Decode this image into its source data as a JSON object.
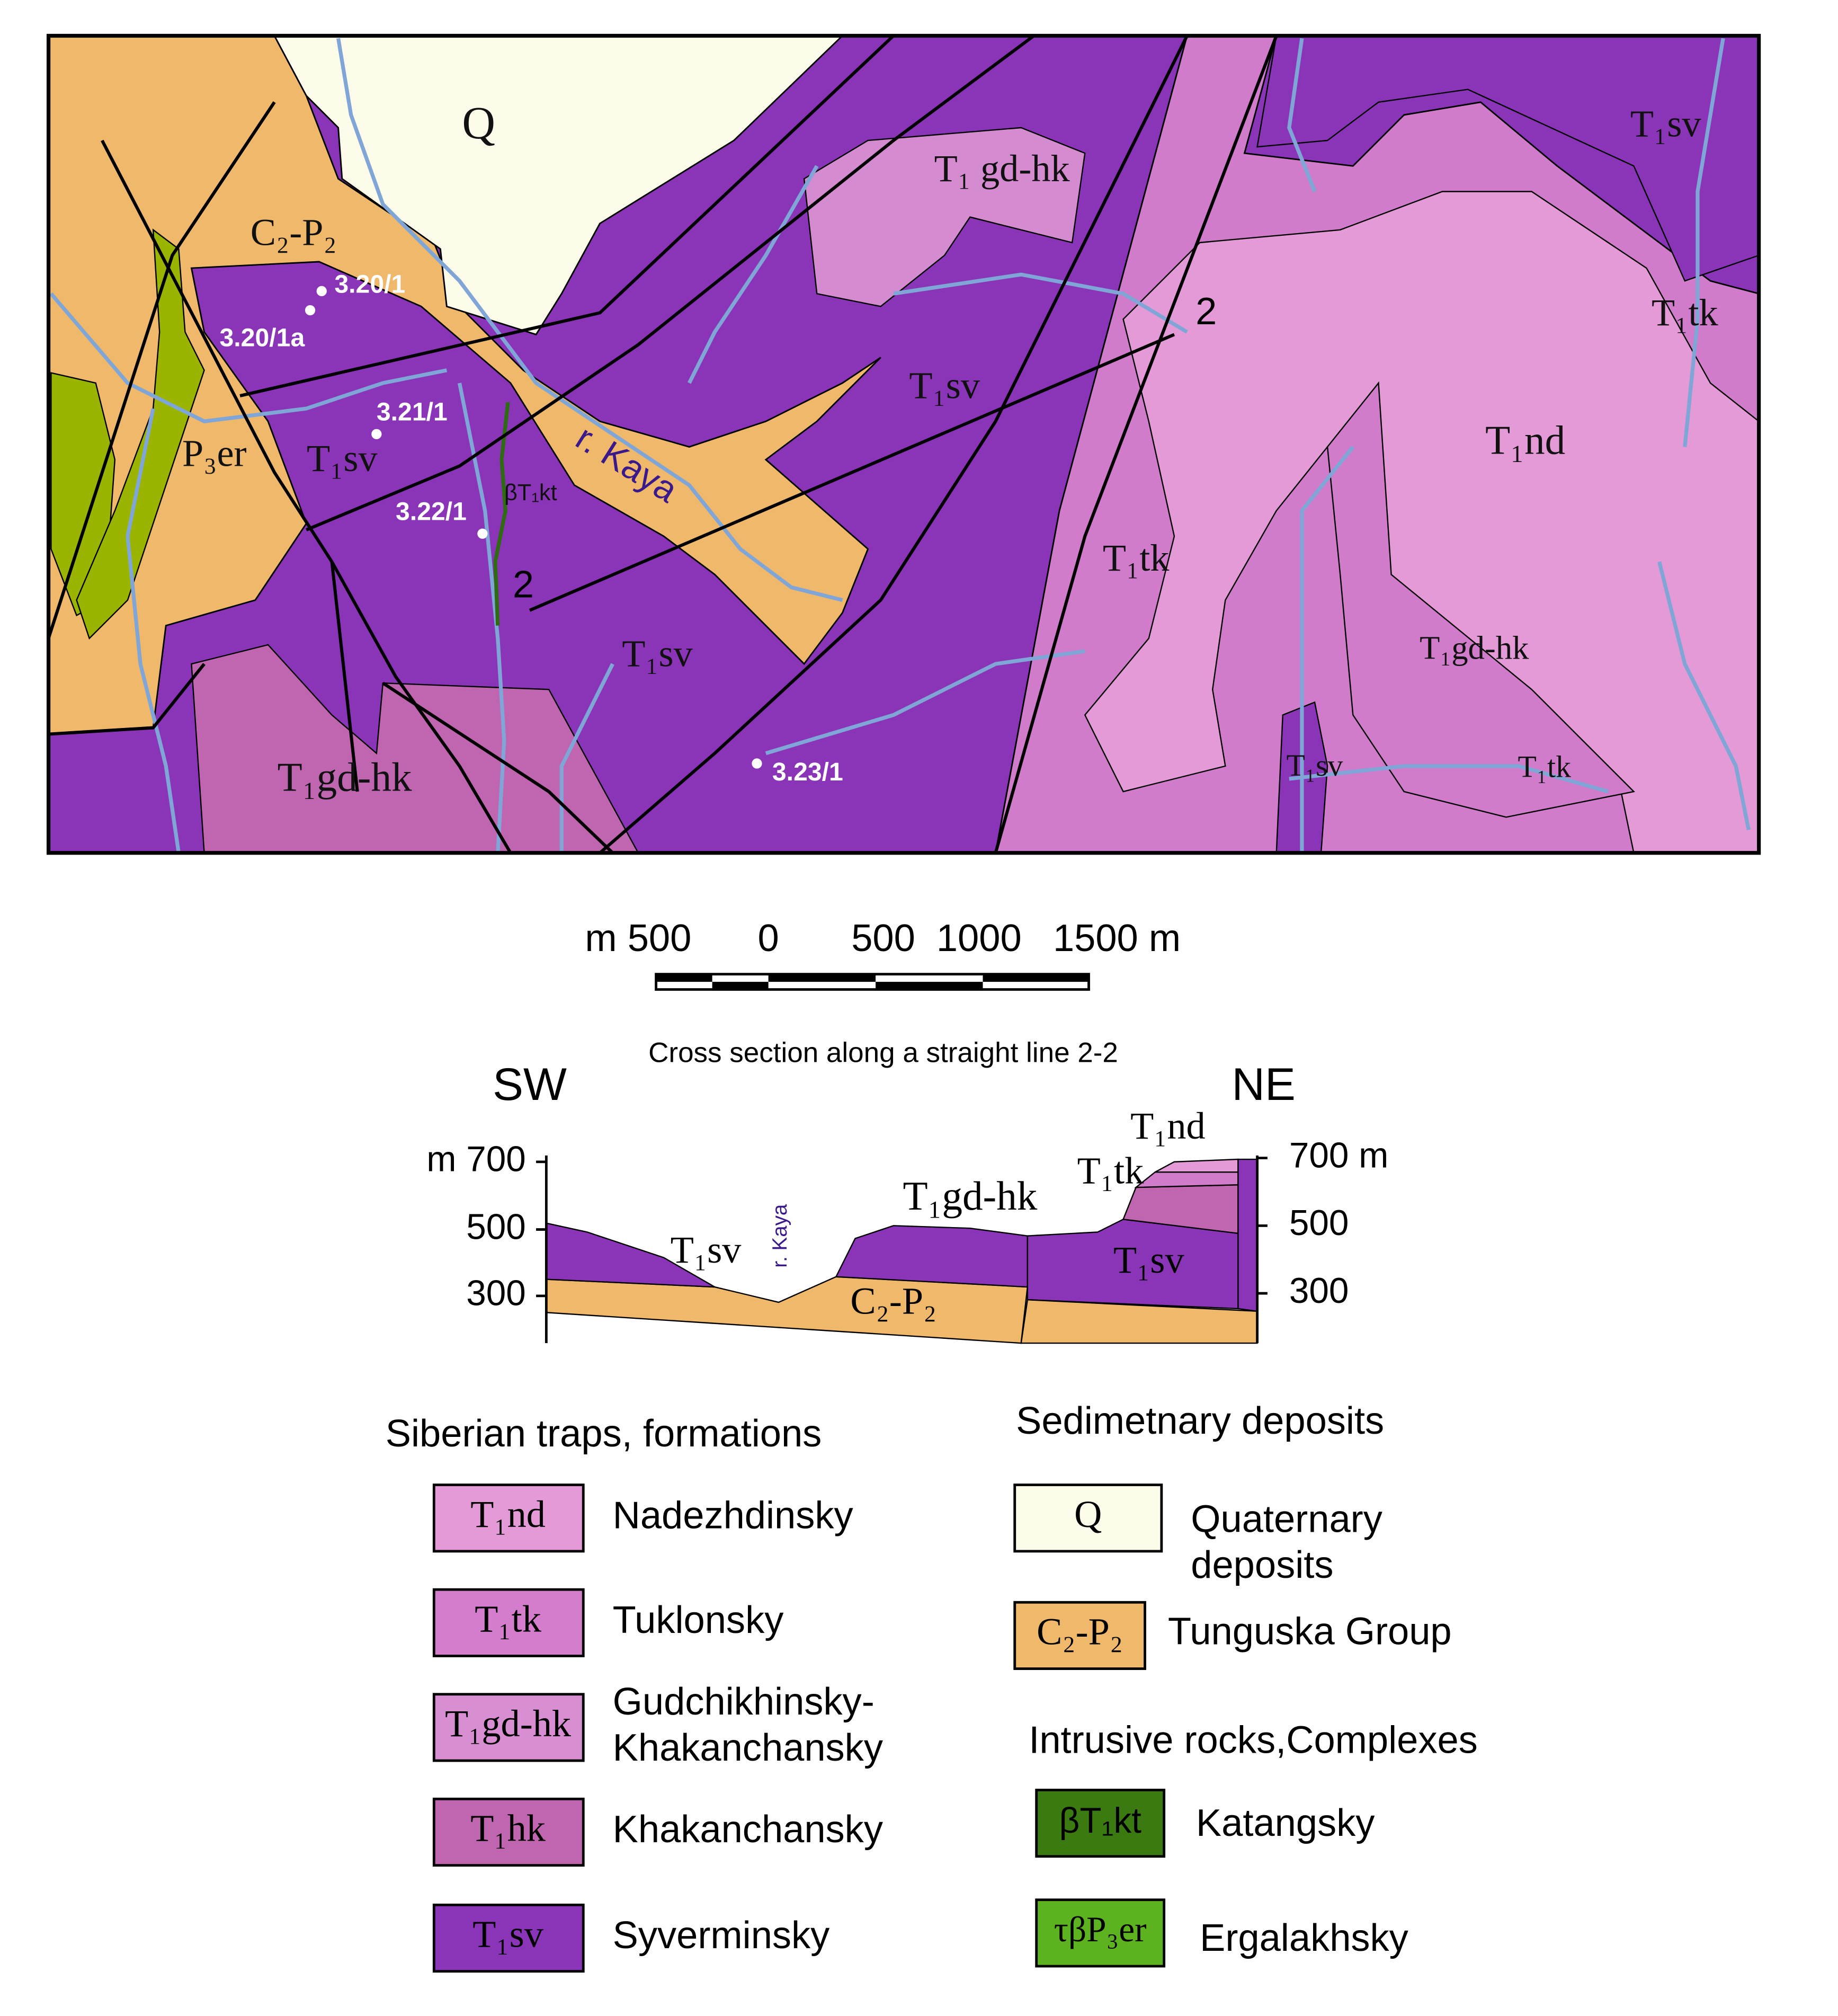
{
  "map": {
    "labels": [
      "Q",
      "C₂-P₂",
      "T₁ gd-hk",
      "T₁sv",
      "T₁tk",
      "T₁nd",
      "T₁sv",
      "P₃er",
      "T₁sv",
      "T₁tk",
      "T₁sv",
      "T₁gd-hk",
      "T₁gd-hk",
      "T₁sv",
      "T₁tk"
    ],
    "samples": [
      "3.20/1",
      "3.20/1a",
      "3.21/1",
      "3.22/1",
      "3.23/1"
    ],
    "river": "r. Kaya",
    "dike": "βT₁kt",
    "section_marks": [
      "2",
      "2"
    ]
  },
  "scale_bar": {
    "labels": [
      "m 500",
      "0",
      "500",
      "1000",
      "1500 m"
    ]
  },
  "cross_section": {
    "title": "Cross section along a straight line 2-2",
    "left": "SW",
    "right": "NE",
    "left_ticks": [
      "m 700",
      "500",
      "300"
    ],
    "right_ticks": [
      "700 m",
      "500",
      "300"
    ],
    "labels": [
      "T₁nd",
      "T₁tk",
      "T₁gd-hk",
      "T₁sv",
      "T₁sv",
      "C₂-P₂",
      "r. Kaya"
    ]
  },
  "legend": {
    "traps_title": "Siberian traps, formations",
    "traps": [
      {
        "code": "T₁nd",
        "name": [
          "Nadezhdinsky"
        ]
      },
      {
        "code": "T₁tk",
        "name": [
          "Tuklonsky"
        ]
      },
      {
        "code": "T₁gd-hk",
        "name": [
          "Gudchikhinsky-",
          "Khakanchansky"
        ]
      },
      {
        "code": "T₁hk",
        "name": [
          "Khakanchansky"
        ]
      },
      {
        "code": "T₁sv",
        "name": [
          "Syverminsky"
        ]
      }
    ],
    "sed_title": "Sedimetnary deposits",
    "sed": [
      {
        "code": "Q",
        "name": [
          "Quaternary",
          "deposits"
        ]
      },
      {
        "code": "C₂-P₂",
        "name": [
          "Tunguska Group"
        ]
      }
    ],
    "intr_title": "Intrusive rocks,Complexes",
    "intr": [
      {
        "code": "βT₁kt",
        "name": [
          "Katangsky"
        ]
      },
      {
        "code": "τβP₃er",
        "name": [
          "Ergalakhsky"
        ]
      }
    ]
  }
}
